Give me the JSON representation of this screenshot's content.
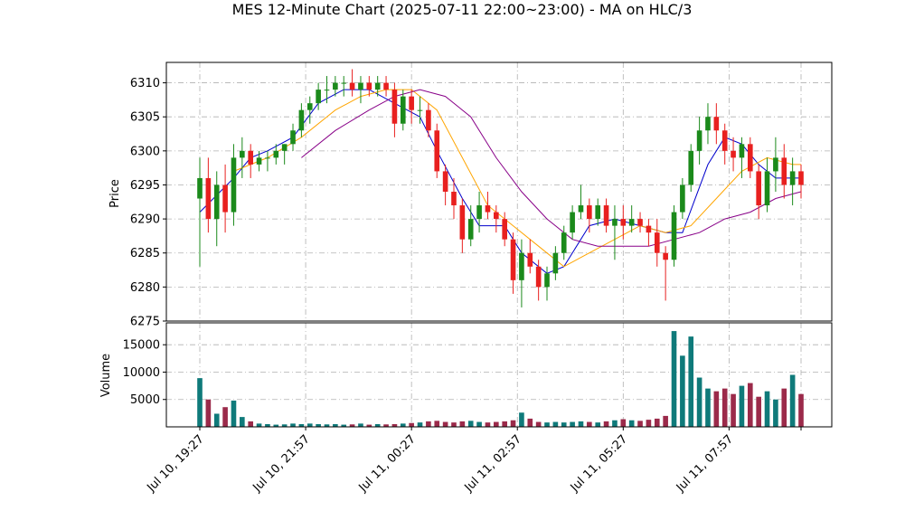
{
  "chart_data": {
    "type": "candlestick",
    "title": "MES 12-Minute Chart (2025-07-11 22:00~23:00) - MA on HLC/3",
    "price_panel": {
      "ylabel": "Price",
      "ylim": [
        6275,
        6313
      ],
      "yticks": [
        6275,
        6280,
        6285,
        6290,
        6295,
        6300,
        6305,
        6310
      ]
    },
    "volume_panel": {
      "ylabel": "Volume",
      "ylim": [
        0,
        19000
      ],
      "yticks": [
        5000,
        10000,
        15000
      ]
    },
    "x_axis": {
      "tick_labels": [
        "Jul 10, 19:27",
        "Jul 10, 21:57",
        "Jul 11, 00:27",
        "Jul 11, 02:57",
        "Jul 11, 05:27",
        "Jul 11, 07:57"
      ],
      "bars_per_tick": 12.5,
      "n_bars": 72
    },
    "grid": true,
    "colors": {
      "up": "#1b8a1b",
      "down": "#e8201f",
      "vol_up": "#0f7a7a",
      "vol_down": "#9b2a4a",
      "ma_fast": "#0000cc",
      "ma_mid": "#ffa500",
      "ma_slow": "#880088"
    },
    "ohlc": [
      [
        6293,
        6299,
        6283,
        6296
      ],
      [
        6296,
        6299,
        6288,
        6290
      ],
      [
        6290,
        6297,
        6286,
        6295
      ],
      [
        6295,
        6298,
        6288,
        6291
      ],
      [
        6291,
        6301,
        6289,
        6299
      ],
      [
        6299,
        6302,
        6296,
        6300
      ],
      [
        6300,
        6301,
        6296,
        6298
      ],
      [
        6298,
        6300,
        6297,
        6299
      ],
      [
        6299,
        6300,
        6297,
        6299
      ],
      [
        6299,
        6301,
        6298,
        6300
      ],
      [
        6300,
        6301,
        6298,
        6301
      ],
      [
        6301,
        6304,
        6300,
        6303
      ],
      [
        6303,
        6307,
        6302,
        6306
      ],
      [
        6306,
        6308,
        6304,
        6307
      ],
      [
        6307,
        6310,
        6306,
        6309
      ],
      [
        6309,
        6311,
        6307,
        6309
      ],
      [
        6309,
        6311,
        6308,
        6310
      ],
      [
        6310,
        6311,
        6308,
        6310
      ],
      [
        6310,
        6312,
        6308,
        6309
      ],
      [
        6309,
        6311,
        6307,
        6310
      ],
      [
        6310,
        6311,
        6308,
        6309
      ],
      [
        6309,
        6311,
        6308,
        6310
      ],
      [
        6310,
        6311,
        6308,
        6309
      ],
      [
        6309,
        6310,
        6302,
        6304
      ],
      [
        6304,
        6309,
        6303,
        6308
      ],
      [
        6308,
        6309,
        6304,
        6306
      ],
      [
        6306,
        6308,
        6304,
        6306
      ],
      [
        6306,
        6307,
        6302,
        6303
      ],
      [
        6303,
        6304,
        6296,
        6297
      ],
      [
        6297,
        6298,
        6292,
        6294
      ],
      [
        6294,
        6296,
        6290,
        6292
      ],
      [
        6292,
        6293,
        6285,
        6287
      ],
      [
        6287,
        6292,
        6286,
        6290
      ],
      [
        6290,
        6294,
        6288,
        6292
      ],
      [
        6292,
        6294,
        6290,
        6291
      ],
      [
        6291,
        6292,
        6288,
        6290
      ],
      [
        6290,
        6291,
        6286,
        6287
      ],
      [
        6287,
        6288,
        6279,
        6281
      ],
      [
        6281,
        6287,
        6277,
        6285
      ],
      [
        6285,
        6287,
        6282,
        6283
      ],
      [
        6283,
        6284,
        6278,
        6280
      ],
      [
        6280,
        6283,
        6278,
        6282
      ],
      [
        6282,
        6286,
        6281,
        6285
      ],
      [
        6285,
        6289,
        6284,
        6288
      ],
      [
        6288,
        6292,
        6287,
        6291
      ],
      [
        6291,
        6295,
        6290,
        6292
      ],
      [
        6292,
        6293,
        6288,
        6290
      ],
      [
        6290,
        6293,
        6289,
        6292
      ],
      [
        6292,
        6293,
        6288,
        6289
      ],
      [
        6289,
        6292,
        6284,
        6290
      ],
      [
        6290,
        6292,
        6287,
        6289
      ],
      [
        6289,
        6292,
        6288,
        6290
      ],
      [
        6290,
        6291,
        6288,
        6289
      ],
      [
        6289,
        6290,
        6286,
        6288
      ],
      [
        6288,
        6290,
        6283,
        6285
      ],
      [
        6285,
        6286,
        6278,
        6284
      ],
      [
        6284,
        6292,
        6283,
        6291
      ],
      [
        6291,
        6296,
        6290,
        6295
      ],
      [
        6295,
        6301,
        6294,
        6300
      ],
      [
        6300,
        6305,
        6298,
        6303
      ],
      [
        6303,
        6307,
        6301,
        6305
      ],
      [
        6305,
        6307,
        6301,
        6303
      ],
      [
        6303,
        6304,
        6298,
        6300
      ],
      [
        6300,
        6302,
        6297,
        6299
      ],
      [
        6299,
        6302,
        6296,
        6301
      ],
      [
        6301,
        6302,
        6296,
        6297
      ],
      [
        6297,
        6298,
        6290,
        6292
      ],
      [
        6292,
        6299,
        6291,
        6297
      ],
      [
        6297,
        6302,
        6294,
        6299
      ],
      [
        6299,
        6301,
        6293,
        6295
      ],
      [
        6295,
        6299,
        6292,
        6297
      ],
      [
        6297,
        6298,
        6293,
        6295
      ]
    ],
    "volume": [
      8900,
      5000,
      2400,
      3600,
      4800,
      1800,
      1000,
      600,
      500,
      400,
      450,
      600,
      500,
      600,
      500,
      450,
      500,
      400,
      450,
      600,
      400,
      500,
      450,
      500,
      600,
      700,
      800,
      1000,
      1100,
      900,
      800,
      1000,
      1100,
      900,
      800,
      900,
      1000,
      1200,
      2600,
      1500,
      900,
      800,
      900,
      800,
      900,
      1000,
      900,
      800,
      1000,
      1200,
      1400,
      1200,
      1100,
      1300,
      1500,
      2000,
      17500,
      13000,
      16500,
      9000,
      7000,
      6500,
      7000,
      6000,
      7500,
      8000,
      5500,
      6500,
      5000,
      7000,
      9500,
      6000
    ],
    "ma": {
      "fast": [
        [
          0,
          6291
        ],
        [
          4,
          6296
        ],
        [
          6,
          6299
        ],
        [
          8,
          6300
        ],
        [
          11,
          6302
        ],
        [
          14,
          6307
        ],
        [
          17,
          6309
        ],
        [
          20,
          6309
        ],
        [
          23,
          6307
        ],
        [
          26,
          6305
        ],
        [
          28,
          6300
        ],
        [
          31,
          6293
        ],
        [
          33,
          6289
        ],
        [
          36,
          6289
        ],
        [
          38,
          6285
        ],
        [
          41,
          6282
        ],
        [
          43,
          6283
        ],
        [
          46,
          6289
        ],
        [
          49,
          6290
        ],
        [
          52,
          6289
        ],
        [
          55,
          6288
        ],
        [
          57,
          6288
        ],
        [
          60,
          6298
        ],
        [
          62,
          6302
        ],
        [
          64,
          6301
        ],
        [
          66,
          6298
        ],
        [
          68,
          6296
        ],
        [
          71,
          6296
        ]
      ],
      "mid": [
        [
          4,
          6297
        ],
        [
          8,
          6299
        ],
        [
          12,
          6302
        ],
        [
          16,
          6306
        ],
        [
          19,
          6308
        ],
        [
          22,
          6309
        ],
        [
          25,
          6309
        ],
        [
          28,
          6306
        ],
        [
          31,
          6299
        ],
        [
          34,
          6292
        ],
        [
          37,
          6289
        ],
        [
          40,
          6286
        ],
        [
          43,
          6283
        ],
        [
          46,
          6285
        ],
        [
          49,
          6287
        ],
        [
          52,
          6289
        ],
        [
          55,
          6288
        ],
        [
          58,
          6289
        ],
        [
          61,
          6293
        ],
        [
          64,
          6297
        ],
        [
          67,
          6299
        ],
        [
          70,
          6298
        ],
        [
          71,
          6298
        ]
      ],
      "slow": [
        [
          12,
          6299
        ],
        [
          16,
          6303
        ],
        [
          20,
          6306
        ],
        [
          23,
          6308
        ],
        [
          26,
          6309
        ],
        [
          29,
          6308
        ],
        [
          32,
          6305
        ],
        [
          35,
          6299
        ],
        [
          38,
          6294
        ],
        [
          41,
          6290
        ],
        [
          44,
          6287
        ],
        [
          47,
          6286
        ],
        [
          50,
          6286
        ],
        [
          53,
          6286
        ],
        [
          56,
          6287
        ],
        [
          59,
          6288
        ],
        [
          62,
          6290
        ],
        [
          65,
          6291
        ],
        [
          68,
          6293
        ],
        [
          71,
          6294
        ]
      ]
    }
  }
}
